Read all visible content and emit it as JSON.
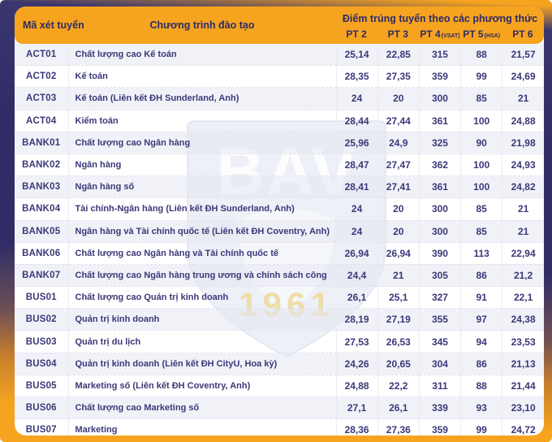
{
  "chart_data": {
    "type": "table",
    "title": "Điểm trúng tuyển theo các phương thức",
    "columns": [
      "Mã xét tuyển",
      "Chương trình đào tạo",
      "PT 2",
      "PT 3",
      "PT 4 (VSAT)",
      "PT 5 (HSA)",
      "PT 6"
    ],
    "rows": [
      {
        "code": "ACT01",
        "program": "Chất lượng cao Kế toán",
        "scores": [
          "25,14",
          "22,85",
          "315",
          "88",
          "21,57"
        ]
      },
      {
        "code": "ACT02",
        "program": "Kế toán",
        "scores": [
          "28,35",
          "27,35",
          "359",
          "99",
          "24,69"
        ]
      },
      {
        "code": "ACT03",
        "program": "Kế toán (Liên kết ĐH Sunderland, Anh)",
        "scores": [
          "24",
          "20",
          "300",
          "85",
          "21"
        ]
      },
      {
        "code": "ACT04",
        "program": "Kiểm toán",
        "scores": [
          "28,44",
          "27,44",
          "361",
          "100",
          "24,88"
        ]
      },
      {
        "code": "BANK01",
        "program": "Chất lượng cao Ngân hàng",
        "scores": [
          "25,96",
          "24,9",
          "325",
          "90",
          "21,98"
        ]
      },
      {
        "code": "BANK02",
        "program": "Ngân hàng",
        "scores": [
          "28,47",
          "27,47",
          "362",
          "100",
          "24,93"
        ]
      },
      {
        "code": "BANK03",
        "program": "Ngân hàng số",
        "scores": [
          "28,41",
          "27,41",
          "361",
          "100",
          "24,82"
        ]
      },
      {
        "code": "BANK04",
        "program": "Tài chính-Ngân hàng (Liên kết ĐH Sunderland, Anh)",
        "scores": [
          "24",
          "20",
          "300",
          "85",
          "21"
        ]
      },
      {
        "code": "BANK05",
        "program": "Ngân hàng và Tài chính quốc tế (Liên kết ĐH Coventry, Anh)",
        "scores": [
          "24",
          "20",
          "300",
          "85",
          "21"
        ]
      },
      {
        "code": "BANK06",
        "program": "Chất lượng cao Ngân hàng và Tài chính quốc tế",
        "scores": [
          "26,94",
          "26,94",
          "390",
          "113",
          "22,94"
        ]
      },
      {
        "code": "BANK07",
        "program": "Chất lượng cao Ngân hàng trung ương và chính sách công",
        "scores": [
          "24,4",
          "21",
          "305",
          "86",
          "21,2"
        ]
      },
      {
        "code": "BUS01",
        "program": "Chất lượng cao Quản trị kinh doanh",
        "scores": [
          "26,1",
          "25,1",
          "327",
          "91",
          "22,1"
        ]
      },
      {
        "code": "BUS02",
        "program": "Quản trị kinh doanh",
        "scores": [
          "28,19",
          "27,19",
          "355",
          "97",
          "24,38"
        ]
      },
      {
        "code": "BUS03",
        "program": "Quản trị du lịch",
        "scores": [
          "27,53",
          "26,53",
          "345",
          "94",
          "23,53"
        ]
      },
      {
        "code": "BUS04",
        "program": "Quản trị kinh doanh (Liên kết ĐH CityU, Hoa kỳ)",
        "scores": [
          "24,26",
          "20,65",
          "304",
          "86",
          "21,13"
        ]
      },
      {
        "code": "BUS05",
        "program": "Marketing số (Liên kết ĐH Coventry, Anh)",
        "scores": [
          "24,88",
          "22,2",
          "311",
          "88",
          "21,44"
        ]
      },
      {
        "code": "BUS06",
        "program": "Chất lượng cao Marketing số",
        "scores": [
          "27,1",
          "26,1",
          "339",
          "93",
          "23,10"
        ]
      },
      {
        "code": "BUS07",
        "program": "Marketing",
        "scores": [
          "28,36",
          "27,36",
          "359",
          "99",
          "24,72"
        ]
      }
    ]
  },
  "header": {
    "code_label": "Mã xét tuyển",
    "program_label": "Chương trình đào tạo",
    "scores_group_label": "Điểm trúng tuyển theo các phương thức",
    "methods": [
      {
        "label": "PT 2",
        "note": ""
      },
      {
        "label": "PT 3",
        "note": ""
      },
      {
        "label": "PT 4",
        "note": "(VSAT)"
      },
      {
        "label": "PT 5",
        "note": "(HSA)"
      },
      {
        "label": "PT 6",
        "note": ""
      }
    ]
  },
  "watermark": {
    "acronym": "BAV",
    "year": "1961"
  },
  "colors": {
    "accent_orange": "#F6A41F",
    "frame_navy": "#302D66",
    "header_text_navy": "#2D2A66",
    "body_text_navy": "#3B3878"
  }
}
